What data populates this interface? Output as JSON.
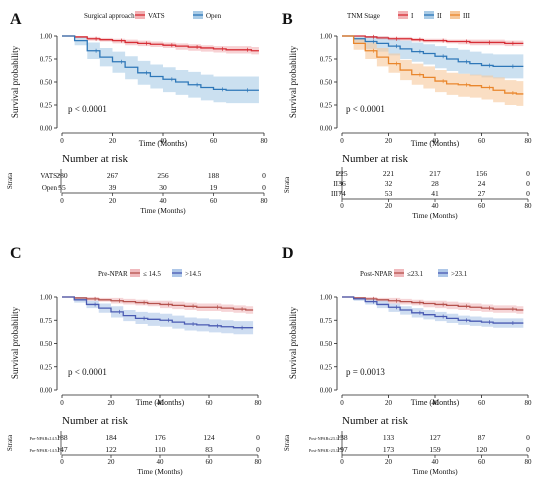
{
  "chart_data": [
    {
      "type": "line",
      "panel": "A",
      "legend_title": "Surgical approach",
      "legend_placement": "top",
      "xlabel": "Time (Months)",
      "ylabel": "Survival probability",
      "xlim": [
        0,
        80
      ],
      "ylim": [
        0,
        1
      ],
      "xticks": [
        "0",
        "20",
        "40",
        "60",
        "80"
      ],
      "yticks": [
        "0.00",
        "0.25",
        "0.50",
        "0.75",
        "1.00"
      ],
      "pvalue": "p < 0.0001",
      "grid": false,
      "series": [
        {
          "name": "VATS",
          "color": "#d62d35",
          "band": "#f2b3b6",
          "x": [
            0,
            5,
            10,
            15,
            20,
            25,
            30,
            35,
            40,
            45,
            50,
            55,
            60,
            65,
            70,
            75,
            78
          ],
          "y": [
            1.0,
            0.99,
            0.97,
            0.96,
            0.95,
            0.93,
            0.92,
            0.91,
            0.9,
            0.89,
            0.88,
            0.87,
            0.86,
            0.85,
            0.85,
            0.84,
            0.84
          ],
          "lo": [
            1.0,
            0.98,
            0.95,
            0.94,
            0.92,
            0.9,
            0.89,
            0.88,
            0.87,
            0.85,
            0.84,
            0.83,
            0.82,
            0.81,
            0.81,
            0.8,
            0.8
          ],
          "hi": [
            1.0,
            1.0,
            0.99,
            0.98,
            0.97,
            0.96,
            0.95,
            0.94,
            0.93,
            0.92,
            0.91,
            0.9,
            0.89,
            0.89,
            0.89,
            0.88,
            0.88
          ]
        },
        {
          "name": "Open",
          "color": "#2e77b8",
          "band": "#a9cbe6",
          "x": [
            0,
            5,
            10,
            15,
            20,
            25,
            30,
            35,
            40,
            45,
            50,
            55,
            60,
            65,
            70,
            75,
            78
          ],
          "y": [
            1.0,
            0.95,
            0.84,
            0.77,
            0.72,
            0.66,
            0.6,
            0.56,
            0.53,
            0.5,
            0.47,
            0.44,
            0.42,
            0.41,
            0.41,
            0.41,
            0.41
          ],
          "lo": [
            1.0,
            0.9,
            0.75,
            0.67,
            0.6,
            0.53,
            0.47,
            0.43,
            0.39,
            0.36,
            0.33,
            0.3,
            0.28,
            0.27,
            0.27,
            0.27,
            0.27
          ],
          "hi": [
            1.0,
            0.99,
            0.93,
            0.87,
            0.83,
            0.78,
            0.73,
            0.69,
            0.66,
            0.63,
            0.61,
            0.58,
            0.56,
            0.56,
            0.56,
            0.56,
            0.56
          ]
        }
      ],
      "risk_table": {
        "title": "Number at risk",
        "strata_label": "Strata",
        "times": [
          "0",
          "20",
          "40",
          "60",
          "80"
        ],
        "rows": [
          {
            "label": "VATS",
            "color": "#d62d35",
            "counts": [
              "280",
              "267",
              "256",
              "188",
              "0"
            ]
          },
          {
            "label": "Open",
            "color": "#2e77b8",
            "counts": [
              "55",
              "39",
              "30",
              "19",
              "0"
            ]
          }
        ]
      }
    },
    {
      "type": "line",
      "panel": "B",
      "legend_title": "TNM Stage",
      "legend_placement": "top",
      "xlabel": "Time (Months)",
      "ylabel": "Survival probability",
      "xlim": [
        0,
        80
      ],
      "ylim": [
        0,
        1
      ],
      "xticks": [
        "0",
        "20",
        "40",
        "60",
        "80"
      ],
      "yticks": [
        "0.00",
        "0.25",
        "0.50",
        "0.75",
        "1.00"
      ],
      "pvalue": "p < 0.0001",
      "grid": false,
      "series": [
        {
          "name": "I",
          "color": "#d62d35",
          "band": "#f2b3b6",
          "x": [
            0,
            5,
            10,
            15,
            20,
            25,
            30,
            35,
            40,
            45,
            50,
            55,
            60,
            65,
            70,
            75,
            78
          ],
          "y": [
            1.0,
            1.0,
            0.99,
            0.98,
            0.97,
            0.97,
            0.96,
            0.95,
            0.95,
            0.94,
            0.94,
            0.93,
            0.93,
            0.93,
            0.92,
            0.92,
            0.92
          ],
          "lo": [
            1.0,
            0.99,
            0.98,
            0.96,
            0.95,
            0.95,
            0.94,
            0.93,
            0.93,
            0.92,
            0.91,
            0.9,
            0.9,
            0.9,
            0.89,
            0.89,
            0.89
          ],
          "hi": [
            1.0,
            1.0,
            1.0,
            1.0,
            0.99,
            0.99,
            0.98,
            0.97,
            0.97,
            0.96,
            0.96,
            0.96,
            0.96,
            0.96,
            0.95,
            0.95,
            0.95
          ]
        },
        {
          "name": "II",
          "color": "#2e77b8",
          "band": "#a9cbe6",
          "x": [
            0,
            5,
            10,
            15,
            20,
            25,
            30,
            35,
            40,
            45,
            50,
            55,
            60,
            65,
            70,
            75,
            78
          ],
          "y": [
            1.0,
            0.97,
            0.94,
            0.92,
            0.89,
            0.86,
            0.83,
            0.81,
            0.78,
            0.75,
            0.72,
            0.7,
            0.68,
            0.67,
            0.67,
            0.67,
            0.67
          ],
          "lo": [
            1.0,
            0.92,
            0.86,
            0.83,
            0.79,
            0.75,
            0.72,
            0.69,
            0.65,
            0.62,
            0.59,
            0.57,
            0.55,
            0.54,
            0.54,
            0.54,
            0.54
          ],
          "hi": [
            1.0,
            1.0,
            1.0,
            0.99,
            0.97,
            0.95,
            0.93,
            0.91,
            0.89,
            0.87,
            0.85,
            0.83,
            0.81,
            0.8,
            0.8,
            0.8,
            0.8
          ]
        },
        {
          "name": "III",
          "color": "#e9862c",
          "band": "#f6c89b",
          "x": [
            0,
            5,
            10,
            15,
            20,
            25,
            30,
            35,
            40,
            45,
            50,
            55,
            60,
            65,
            70,
            75,
            78
          ],
          "y": [
            1.0,
            0.92,
            0.84,
            0.77,
            0.7,
            0.63,
            0.58,
            0.55,
            0.51,
            0.48,
            0.47,
            0.46,
            0.44,
            0.41,
            0.38,
            0.37,
            0.37
          ],
          "lo": [
            1.0,
            0.85,
            0.75,
            0.67,
            0.6,
            0.52,
            0.47,
            0.43,
            0.39,
            0.36,
            0.34,
            0.33,
            0.31,
            0.28,
            0.25,
            0.24,
            0.24
          ],
          "hi": [
            1.0,
            0.98,
            0.93,
            0.87,
            0.81,
            0.74,
            0.7,
            0.67,
            0.63,
            0.6,
            0.59,
            0.58,
            0.57,
            0.55,
            0.52,
            0.51,
            0.51
          ]
        }
      ],
      "risk_table": {
        "title": "Number at risk",
        "strata_label": "Strata",
        "times": [
          "0",
          "20",
          "40",
          "60",
          "80"
        ],
        "rows": [
          {
            "label": "I",
            "color": "#d62d35",
            "counts": [
              "225",
              "221",
              "217",
              "156",
              "0"
            ]
          },
          {
            "label": "II",
            "color": "#2e77b8",
            "counts": [
              "36",
              "32",
              "28",
              "24",
              "0"
            ]
          },
          {
            "label": "III",
            "color": "#e9862c",
            "counts": [
              "74",
              "53",
              "41",
              "27",
              "0"
            ]
          }
        ]
      }
    },
    {
      "type": "line",
      "panel": "C",
      "legend_title": "Pre-NPAR",
      "legend_placement": "top",
      "xlabel": "Time (Months)",
      "ylabel": "Survival probability",
      "xlim": [
        0,
        80
      ],
      "ylim": [
        0,
        1
      ],
      "xticks": [
        "0",
        "20",
        "40",
        "60",
        "80"
      ],
      "yticks": [
        "0.00",
        "0.25",
        "0.50",
        "0.75",
        "1.00"
      ],
      "pvalue": "p < 0.0001",
      "grid": false,
      "series": [
        {
          "name": "≤ 14.5",
          "color": "#b5524d",
          "band": "#f0b9bd",
          "x": [
            0,
            5,
            10,
            15,
            20,
            25,
            30,
            35,
            40,
            45,
            50,
            55,
            60,
            65,
            70,
            75,
            78
          ],
          "y": [
            1.0,
            0.99,
            0.98,
            0.97,
            0.96,
            0.95,
            0.94,
            0.93,
            0.92,
            0.91,
            0.9,
            0.89,
            0.89,
            0.88,
            0.87,
            0.86,
            0.86
          ],
          "lo": [
            1.0,
            0.98,
            0.96,
            0.95,
            0.93,
            0.92,
            0.91,
            0.9,
            0.88,
            0.87,
            0.86,
            0.85,
            0.85,
            0.84,
            0.83,
            0.82,
            0.82
          ],
          "hi": [
            1.0,
            1.0,
            1.0,
            0.99,
            0.99,
            0.98,
            0.97,
            0.96,
            0.96,
            0.95,
            0.94,
            0.93,
            0.93,
            0.92,
            0.91,
            0.9,
            0.9
          ]
        },
        {
          "name": ">14.5",
          "color": "#4a5bb3",
          "band": "#aec7e8",
          "x": [
            0,
            5,
            10,
            15,
            20,
            25,
            30,
            35,
            40,
            45,
            50,
            55,
            60,
            65,
            70,
            75,
            78
          ],
          "y": [
            1.0,
            0.97,
            0.92,
            0.88,
            0.84,
            0.8,
            0.77,
            0.76,
            0.75,
            0.73,
            0.71,
            0.7,
            0.69,
            0.68,
            0.67,
            0.67,
            0.67
          ],
          "lo": [
            1.0,
            0.94,
            0.88,
            0.83,
            0.78,
            0.74,
            0.71,
            0.69,
            0.68,
            0.66,
            0.64,
            0.63,
            0.62,
            0.61,
            0.6,
            0.6,
            0.6
          ],
          "hi": [
            1.0,
            1.0,
            0.96,
            0.93,
            0.9,
            0.86,
            0.84,
            0.83,
            0.82,
            0.8,
            0.78,
            0.77,
            0.76,
            0.75,
            0.74,
            0.74,
            0.74
          ]
        }
      ],
      "risk_table": {
        "title": "Number at risk",
        "strata_label": "Strata",
        "times": [
          "0",
          "20",
          "40",
          "60",
          "80"
        ],
        "rows": [
          {
            "label": "Pre-NPAR≤14.5",
            "color": "#b5524d",
            "counts": [
              "188",
              "184",
              "176",
              "124",
              "0"
            ]
          },
          {
            "label": "Pre-NPAR>14.5",
            "color": "#4a5bb3",
            "counts": [
              "147",
              "122",
              "110",
              "83",
              "0"
            ]
          }
        ]
      }
    },
    {
      "type": "line",
      "panel": "D",
      "legend_title": "Post-NPAR",
      "legend_placement": "top",
      "xlabel": "Time (Months)",
      "ylabel": "Survival probability",
      "xlim": [
        0,
        80
      ],
      "ylim": [
        0,
        1
      ],
      "xticks": [
        "0",
        "20",
        "40",
        "60",
        "80"
      ],
      "yticks": [
        "0.00",
        "0.25",
        "0.50",
        "0.75",
        "1.00"
      ],
      "pvalue": "p = 0.0013",
      "grid": false,
      "series": [
        {
          "name": "≤23.1",
          "color": "#b5524d",
          "band": "#f0b9bd",
          "x": [
            0,
            5,
            10,
            15,
            20,
            25,
            30,
            35,
            40,
            45,
            50,
            55,
            60,
            65,
            70,
            75,
            78
          ],
          "y": [
            1.0,
            0.99,
            0.98,
            0.97,
            0.96,
            0.95,
            0.94,
            0.93,
            0.92,
            0.91,
            0.9,
            0.89,
            0.88,
            0.87,
            0.87,
            0.86,
            0.86
          ],
          "lo": [
            1.0,
            0.98,
            0.96,
            0.95,
            0.93,
            0.92,
            0.91,
            0.89,
            0.88,
            0.87,
            0.86,
            0.85,
            0.84,
            0.83,
            0.83,
            0.82,
            0.82
          ],
          "hi": [
            1.0,
            1.0,
            1.0,
            0.99,
            0.99,
            0.98,
            0.97,
            0.96,
            0.96,
            0.95,
            0.94,
            0.93,
            0.92,
            0.91,
            0.91,
            0.9,
            0.9
          ]
        },
        {
          "name": ">23.1",
          "color": "#4a5bb3",
          "band": "#aec7e8",
          "x": [
            0,
            5,
            10,
            15,
            20,
            25,
            30,
            35,
            40,
            45,
            50,
            55,
            60,
            65,
            70,
            75,
            78
          ],
          "y": [
            1.0,
            0.98,
            0.95,
            0.92,
            0.89,
            0.86,
            0.83,
            0.81,
            0.79,
            0.77,
            0.75,
            0.74,
            0.73,
            0.72,
            0.72,
            0.72,
            0.72
          ],
          "lo": [
            1.0,
            0.96,
            0.92,
            0.88,
            0.84,
            0.81,
            0.78,
            0.76,
            0.74,
            0.72,
            0.7,
            0.69,
            0.68,
            0.67,
            0.67,
            0.67,
            0.67
          ],
          "hi": [
            1.0,
            1.0,
            0.98,
            0.96,
            0.93,
            0.9,
            0.88,
            0.86,
            0.84,
            0.82,
            0.8,
            0.79,
            0.78,
            0.77,
            0.77,
            0.77,
            0.77
          ]
        }
      ],
      "risk_table": {
        "title": "Number at risk",
        "strata_label": "Strata",
        "times": [
          "0",
          "20",
          "40",
          "60",
          "80"
        ],
        "rows": [
          {
            "label": "Post-NPAR≤23.1",
            "color": "#b5524d",
            "counts": [
              "138",
              "133",
              "127",
              "87",
              "0"
            ]
          },
          {
            "label": "Post-NPAR>23.1",
            "color": "#4a5bb3",
            "counts": [
              "197",
              "173",
              "159",
              "120",
              "0"
            ]
          }
        ]
      }
    }
  ]
}
